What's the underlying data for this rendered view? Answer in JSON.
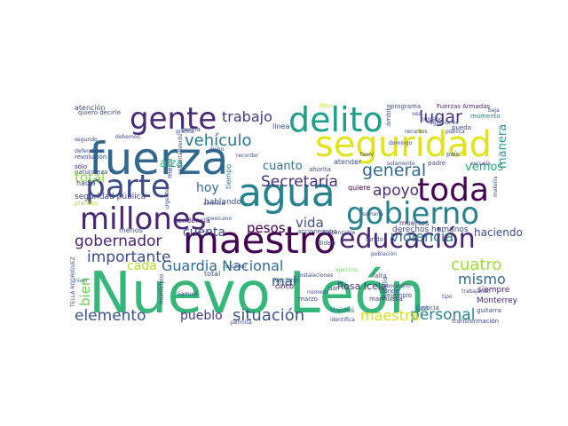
{
  "words": [
    {
      "text": "Nuevo León",
      "color": "#35b779"
    },
    {
      "text": "agua",
      "color": "#26828e"
    },
    {
      "text": "fuerza",
      "color": "#31688e"
    },
    {
      "text": "maestro",
      "color": "#440154"
    },
    {
      "text": "seguridad",
      "color": "#e3e418"
    },
    {
      "text": "delito",
      "color": "#1f9e89"
    },
    {
      "text": "millones",
      "color": "#482475"
    },
    {
      "text": "gobierno",
      "color": "#26828e"
    },
    {
      "text": "toda",
      "color": "#440154"
    },
    {
      "text": "parte",
      "color": "#3e4a89"
    },
    {
      "text": "gente",
      "color": "#482878"
    },
    {
      "text": "educación",
      "color": "#482475"
    },
    {
      "text": "Guardia Nacional",
      "color": "#31688e"
    },
    {
      "text": "gobernador",
      "color": "#482475"
    },
    {
      "text": "importante",
      "color": "#3e4a89"
    },
    {
      "text": "vehículo",
      "color": "#2a788e"
    },
    {
      "text": "Secretaría",
      "color": "#46327e"
    },
    {
      "text": "trabajo",
      "color": "#443a83"
    },
    {
      "text": "lugar",
      "color": "#46327e"
    },
    {
      "text": "general",
      "color": "#31688e"
    },
    {
      "text": "apoyo",
      "color": "#472c7a"
    },
    {
      "text": "violencia",
      "color": "#26828e"
    },
    {
      "text": "cuatro",
      "color": "#a0da39"
    },
    {
      "text": "mismo",
      "color": "#31688e"
    },
    {
      "text": "personal",
      "color": "#26828e"
    },
    {
      "text": "maestra",
      "color": "#d0e11c"
    },
    {
      "text": "situación",
      "color": "#3b528b"
    },
    {
      "text": "elemento",
      "color": "#3b528b"
    },
    {
      "text": "pueblo",
      "color": "#443a83"
    },
    {
      "text": "bien",
      "color": "#6ece58"
    },
    {
      "text": "total",
      "color": "#90d743"
    },
    {
      "text": "vida",
      "color": "#3b528b"
    },
    {
      "text": "pesos",
      "color": "#440154"
    },
    {
      "text": "mal",
      "color": "#3b528b"
    },
    {
      "text": "cuanto",
      "color": "#2a788e"
    },
    {
      "text": "hoy",
      "color": "#31688e"
    },
    {
      "text": "cuenta",
      "color": "#3e4a89"
    },
    {
      "text": "alza",
      "color": "#35b779"
    },
    {
      "text": "manera",
      "color": "#1f9e89"
    },
    {
      "text": "vemos",
      "color": "#22a884"
    },
    {
      "text": "haciendo",
      "color": "#3e4a89"
    },
    {
      "text": "cada",
      "color": "#b5de2b"
    },
    {
      "text": "seguridad pública",
      "color": "#414487"
    },
    {
      "text": "Rosa Icela",
      "color": "#46327e"
    },
    {
      "text": "siempre",
      "color": "#481f70"
    },
    {
      "text": "Monterrey",
      "color": "#482475"
    },
    {
      "text": "Unidos",
      "color": "#2a788e"
    },
    {
      "text": "Nacional",
      "color": "#31688e"
    },
    {
      "text": "cinco",
      "color": "#440154"
    },
    {
      "text": "hablando",
      "color": "#3b528b"
    },
    {
      "text": "tendencia",
      "color": "#482878"
    },
    {
      "text": "derechos humanos",
      "color": "#3e4a89"
    },
    {
      "text": "atención",
      "color": "#3e4a89"
    },
    {
      "text": "Fuerzas Armadas",
      "color": "#482475"
    },
    {
      "text": "momento",
      "color": "#26828e"
    },
    {
      "text": "programa",
      "color": "#3e4a89"
    },
    {
      "text": "sólo",
      "color": "#482475"
    },
    {
      "text": "hacia",
      "color": "#3b528b"
    },
    {
      "text": "buena",
      "color": "#3e4a89"
    },
    {
      "text": "línea",
      "color": "#3e4a89"
    },
    {
      "text": "atender",
      "color": "#3e4a89"
    },
    {
      "text": "padre",
      "color": "#3e4a89"
    },
    {
      "text": "quiere",
      "color": "#440154"
    },
    {
      "text": "marihuana",
      "color": "#46327e"
    },
    {
      "text": "fiscalía",
      "color": "#31688e"
    },
    {
      "text": "justicia",
      "color": "#3b528b"
    },
    {
      "text": "pueda",
      "color": "#3e4a89"
    },
    {
      "text": "país",
      "color": "#3b528b"
    },
    {
      "text": "Uso",
      "color": "#31688e"
    },
    {
      "text": "total",
      "color": "#3b528b"
    },
    {
      "text": "municipio",
      "color": "#3e4a89"
    },
    {
      "text": "tiempo",
      "color": "#2a788e"
    },
    {
      "text": "favor",
      "color": "#3e4a89"
    },
    {
      "text": "población",
      "color": "#3e4a89"
    },
    {
      "text": "muertos",
      "color": "#46327e"
    },
    {
      "text": "mexicano",
      "color": "#3b528b"
    },
    {
      "text": "guitarra",
      "color": "#3e4a89"
    },
    {
      "text": "transformación",
      "color": "#3e4a89"
    },
    {
      "text": "mejor",
      "color": "#3e4a89"
    },
    {
      "text": "revolución",
      "color": "#3e4a89"
    },
    {
      "text": "nivel",
      "color": "#31688e"
    },
    {
      "text": "semana",
      "color": "#3e4a89"
    },
    {
      "text": "dar",
      "color": "#3b528b"
    },
    {
      "text": "Biden",
      "color": "#3b528b"
    },
    {
      "text": "ejemplo",
      "color": "#3e4a89"
    },
    {
      "text": "recursos",
      "color": "#3e4a89"
    },
    {
      "text": "falta",
      "color": "#3e4a89"
    },
    {
      "text": "ámbito",
      "color": "#3e4a89"
    },
    {
      "text": "donde",
      "color": "#3e4a89"
    },
    {
      "text": "acciones",
      "color": "#3e4a89"
    },
    {
      "text": "robo",
      "color": "#3e4a89"
    },
    {
      "text": "ejercicio",
      "color": "#6ece58"
    },
    {
      "text": "ahorita",
      "color": "#3e4a89"
    },
    {
      "text": "fondo",
      "color": "#3e4a89"
    },
    {
      "text": "américa",
      "color": "#3e4a89"
    },
    {
      "text": "menos",
      "color": "#3e4a89"
    },
    {
      "text": "naturaleza",
      "color": "#3e4a89"
    },
    {
      "text": "segundo",
      "color": "#3e4a89"
    },
    {
      "text": "domingo",
      "color": "#3e4a89"
    },
    {
      "text": "solamente",
      "color": "#3e4a89"
    },
    {
      "text": "quiero decirle",
      "color": "#3e4a89"
    },
    {
      "text": "Samuel",
      "color": "#3e4a89"
    },
    {
      "text": "laboratorio",
      "color": "#3e4a89"
    },
    {
      "text": "marzo",
      "color": "#3e4a89"
    },
    {
      "text": "número",
      "color": "#3e4a89"
    },
    {
      "text": "instalaciones",
      "color": "#3e4a89"
    },
    {
      "text": "identifica",
      "color": "#3e4a89"
    },
    {
      "text": "trabajando",
      "color": "#3e4a89"
    },
    {
      "text": "baja",
      "color": "#3e4a89"
    },
    {
      "text": "TELLA RODRIGUEZ",
      "color": "#3e4a89"
    },
    {
      "text": "plantas",
      "color": "#b5de2b"
    },
    {
      "text": "agresiones",
      "color": "#3e4a89"
    },
    {
      "text": "vez",
      "color": "#3e4a89"
    },
    {
      "text": "dicho",
      "color": "#3e4a89"
    },
    {
      "text": "debemos",
      "color": "#3e4a89"
    },
    {
      "text": "escuela",
      "color": "#3e4a89"
    },
    {
      "text": "materia",
      "color": "#3e4a89"
    },
    {
      "text": "tipo",
      "color": "#3e4a89"
    },
    {
      "text": "permita",
      "color": "#3e4a89"
    },
    {
      "text": "defendido",
      "color": "#3e4a89"
    },
    {
      "text": "responsable",
      "color": "#3e4a89"
    },
    {
      "text": "recordar",
      "color": "#3e4a89"
    },
    {
      "text": "gráfica",
      "color": "#3e4a89"
    },
    {
      "text": "humano",
      "color": "#3e4a89"
    },
    {
      "text": "pública",
      "color": "#3e4a89"
    },
    {
      "text": "litros",
      "color": "#b5de2b"
    },
    {
      "text": "urgente",
      "color": "#3e4a89"
    },
    {
      "text": "suceder",
      "color": "#3e4a89"
    },
    {
      "text": "enfrentamiento",
      "color": "#3e4a89"
    }
  ]
}
